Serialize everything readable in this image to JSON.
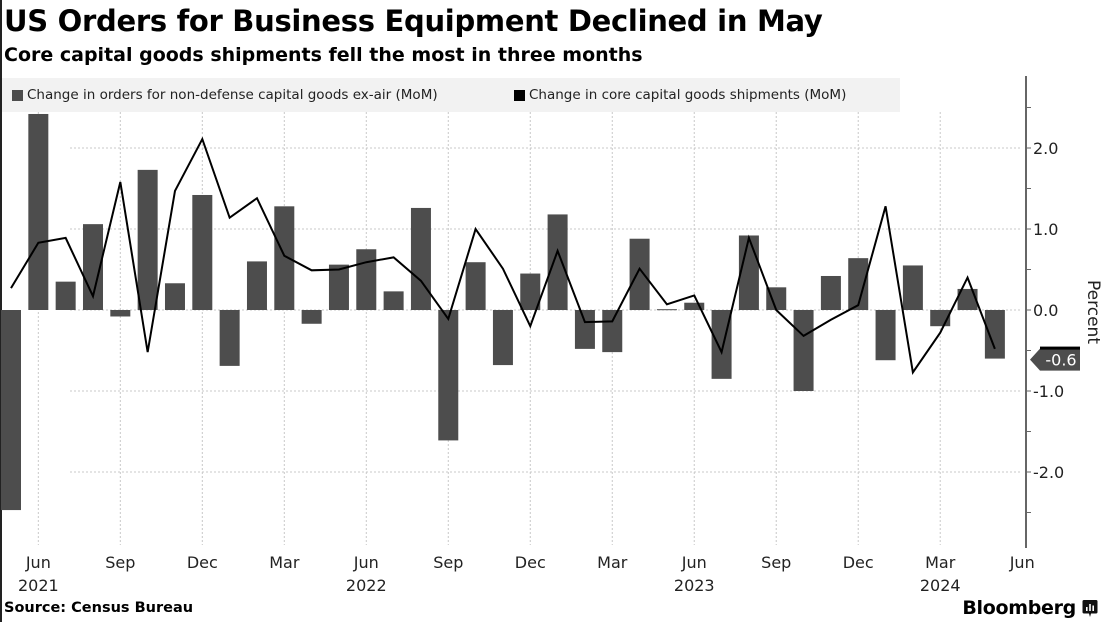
{
  "header": {
    "title": "US Orders for Business Equipment Declined in May",
    "subtitle": "Core capital goods shipments fell the most in three months"
  },
  "footer": {
    "source": "Source: Census Bureau",
    "brand": "Bloomberg",
    "brand_icon": "bloomberg-chart-icon"
  },
  "colors": {
    "bars": "#4d4d4d",
    "line": "#000000",
    "legend_bg": "#f2f2f2",
    "grid": "#c8c8c8",
    "axis": "#666666"
  },
  "chart_data": {
    "type": "bar",
    "title": "US Orders for Business Equipment Declined in May",
    "subtitle": "Core capital goods shipments fell the most in three months",
    "xlabel": "",
    "ylabel": "Percent",
    "ylim": [
      -2.7,
      2.85
    ],
    "yticks": [
      2.0,
      1.0,
      0.0,
      -1.0,
      -2.0
    ],
    "ytick_labels": [
      "2.0",
      "1.0",
      "0.0",
      "-1.0",
      "-2.0"
    ],
    "grid": true,
    "legend": "top-left",
    "categories": [
      "May 2021",
      "Jun 2021",
      "Jul 2021",
      "Aug 2021",
      "Sep 2021",
      "Oct 2021",
      "Nov 2021",
      "Dec 2021",
      "Jan 2022",
      "Feb 2022",
      "Mar 2022",
      "Apr 2022",
      "May 2022",
      "Jun 2022",
      "Jul 2022",
      "Aug 2022",
      "Sep 2022",
      "Oct 2022",
      "Nov 2022",
      "Dec 2022",
      "Jan 2023",
      "Feb 2023",
      "Mar 2023",
      "Apr 2023",
      "May 2023",
      "Jun 2023",
      "Jul 2023",
      "Aug 2023",
      "Sep 2023",
      "Oct 2023",
      "Nov 2023",
      "Dec 2023",
      "Jan 2024",
      "Feb 2024",
      "Mar 2024",
      "Apr 2024",
      "May 2024"
    ],
    "xticks": [
      {
        "month_index": 1,
        "label": "Jun",
        "year": "2021"
      },
      {
        "month_index": 4,
        "label": "Sep",
        "year": ""
      },
      {
        "month_index": 7,
        "label": "Dec",
        "year": ""
      },
      {
        "month_index": 10,
        "label": "Mar",
        "year": ""
      },
      {
        "month_index": 13,
        "label": "Jun",
        "year": "2022"
      },
      {
        "month_index": 16,
        "label": "Sep",
        "year": ""
      },
      {
        "month_index": 19,
        "label": "Dec",
        "year": ""
      },
      {
        "month_index": 22,
        "label": "Mar",
        "year": ""
      },
      {
        "month_index": 25,
        "label": "Jun",
        "year": "2023"
      },
      {
        "month_index": 28,
        "label": "Sep",
        "year": ""
      },
      {
        "month_index": 31,
        "label": "Dec",
        "year": ""
      },
      {
        "month_index": 34,
        "label": "Mar",
        "year": "2024"
      },
      {
        "month_index": 37,
        "label": "Jun",
        "year": ""
      }
    ],
    "series": [
      {
        "name": "Change in orders for non-defense capital goods ex-air (MoM)",
        "kind": "bar",
        "values": [
          -2.47,
          2.42,
          0.35,
          1.06,
          -0.08,
          1.73,
          0.33,
          1.42,
          -0.69,
          0.6,
          1.28,
          -0.17,
          0.56,
          0.75,
          0.23,
          1.26,
          -1.61,
          0.59,
          -0.68,
          0.45,
          1.18,
          -0.48,
          -0.52,
          0.88,
          0.01,
          0.09,
          -0.85,
          0.92,
          0.28,
          -1.0,
          0.42,
          0.64,
          -0.62,
          0.55,
          -0.2,
          0.26,
          -0.6
        ]
      },
      {
        "name": "Change in core capital goods shipments (MoM)",
        "kind": "line",
        "values": [
          0.27,
          0.83,
          0.89,
          0.17,
          1.58,
          -0.52,
          1.47,
          2.11,
          1.14,
          1.38,
          0.67,
          0.49,
          0.5,
          0.59,
          0.65,
          0.36,
          -0.11,
          1.0,
          0.51,
          -0.2,
          0.73,
          -0.15,
          -0.14,
          0.51,
          0.07,
          0.18,
          -0.52,
          0.89,
          0.0,
          -0.32,
          -0.12,
          0.06,
          1.28,
          -0.77,
          -0.28,
          0.4,
          -0.48
        ]
      }
    ],
    "last_value_label": "-0.6"
  }
}
